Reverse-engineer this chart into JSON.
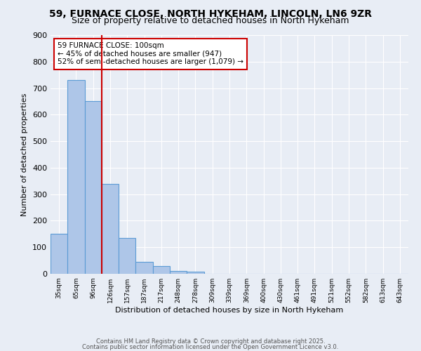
{
  "title": "59, FURNACE CLOSE, NORTH HYKEHAM, LINCOLN, LN6 9ZR",
  "subtitle": "Size of property relative to detached houses in North Hykeham",
  "xlabel": "Distribution of detached houses by size in North Hykeham",
  "ylabel": "Number of detached properties",
  "categories": [
    "35sqm",
    "65sqm",
    "96sqm",
    "126sqm",
    "157sqm",
    "187sqm",
    "217sqm",
    "248sqm",
    "278sqm",
    "309sqm",
    "339sqm",
    "369sqm",
    "400sqm",
    "430sqm",
    "461sqm",
    "491sqm",
    "521sqm",
    "552sqm",
    "582sqm",
    "613sqm",
    "643sqm"
  ],
  "values": [
    150,
    730,
    650,
    340,
    135,
    45,
    30,
    10,
    8,
    0,
    0,
    0,
    0,
    0,
    0,
    0,
    0,
    0,
    0,
    0,
    0
  ],
  "bar_color": "#aec6e8",
  "bar_edge_color": "#5b9bd5",
  "vline_x": 2.5,
  "vline_color": "#cc0000",
  "vline_linewidth": 1.5,
  "annotation_text": "59 FURNACE CLOSE: 100sqm\n← 45% of detached houses are smaller (947)\n52% of semi-detached houses are larger (1,079) →",
  "annotation_fontsize": 7.5,
  "annotation_box_color": "white",
  "annotation_box_edge_color": "#cc0000",
  "ylim": [
    0,
    900
  ],
  "yticks": [
    0,
    100,
    200,
    300,
    400,
    500,
    600,
    700,
    800,
    900
  ],
  "bg_color": "#e8edf5",
  "grid_color": "white",
  "title_fontsize": 10,
  "subtitle_fontsize": 9,
  "footer_text1": "Contains HM Land Registry data © Crown copyright and database right 2025.",
  "footer_text2": "Contains public sector information licensed under the Open Government Licence v3.0."
}
